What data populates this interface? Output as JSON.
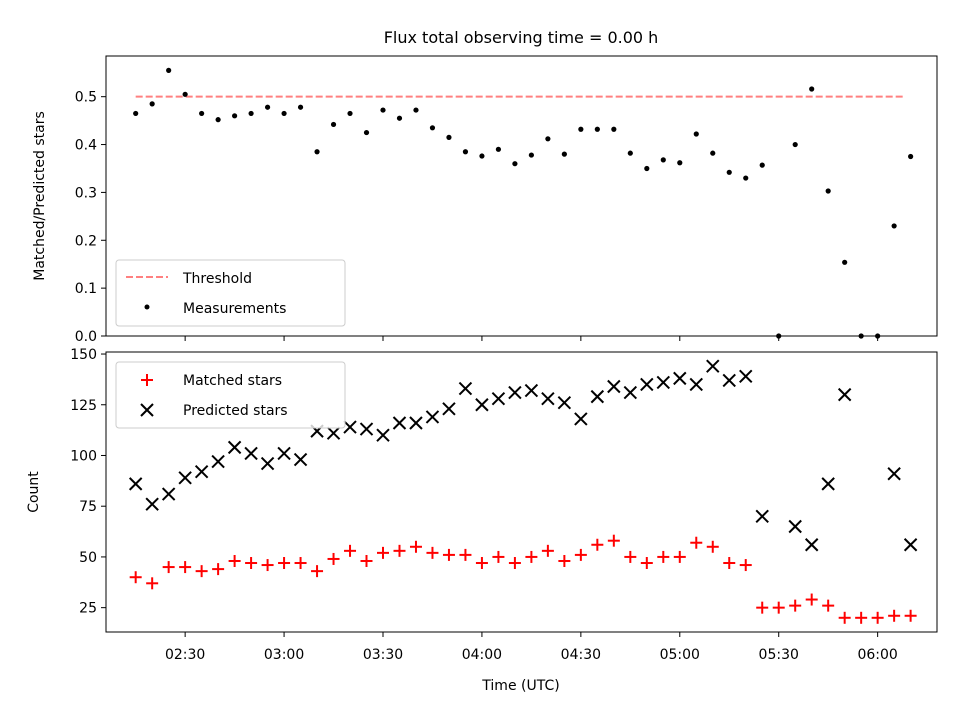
{
  "figure": {
    "title": "Flux total observing time = 0.00 h"
  },
  "chart_data": [
    {
      "type": "scatter",
      "panel": "top",
      "ylabel": "Matched/Predicted stars",
      "xlabel": "",
      "ylim": [
        0,
        0.585
      ],
      "yticks": [
        0.0,
        0.1,
        0.2,
        0.3,
        0.4,
        0.5
      ],
      "ytick_labels": [
        "0.0",
        "0.1",
        "0.2",
        "0.3",
        "0.4",
        "0.5"
      ],
      "xlim": [
        "02:06",
        "06:18"
      ],
      "legend_position": "lower-left",
      "series": [
        {
          "name": "Threshold",
          "style": "dashed-line",
          "color": "#ff8080",
          "x": [
            "02:15",
            "06:08"
          ],
          "y": [
            0.5,
            0.5
          ]
        },
        {
          "name": "Measurements",
          "style": "dot",
          "color": "#000000",
          "x": [
            "02:15",
            "02:20",
            "02:25",
            "02:30",
            "02:35",
            "02:40",
            "02:45",
            "02:50",
            "02:55",
            "03:00",
            "03:05",
            "03:10",
            "03:15",
            "03:20",
            "03:25",
            "03:30",
            "03:35",
            "03:40",
            "03:45",
            "03:50",
            "03:55",
            "04:00",
            "04:05",
            "04:10",
            "04:15",
            "04:20",
            "04:25",
            "04:30",
            "04:35",
            "04:40",
            "04:45",
            "04:50",
            "04:55",
            "05:00",
            "05:05",
            "05:10",
            "05:15",
            "05:20",
            "05:25",
            "05:30",
            "05:35",
            "05:40",
            "05:45",
            "05:50",
            "05:55",
            "06:00",
            "06:05",
            "06:10"
          ],
          "y": [
            0.465,
            0.485,
            0.555,
            0.505,
            0.465,
            0.452,
            0.46,
            0.465,
            0.478,
            0.465,
            0.478,
            0.385,
            0.442,
            0.465,
            0.425,
            0.472,
            0.455,
            0.472,
            0.435,
            0.415,
            0.385,
            0.376,
            0.39,
            0.36,
            0.378,
            0.412,
            0.38,
            0.432,
            0.432,
            0.432,
            0.382,
            0.35,
            0.368,
            0.362,
            0.422,
            0.382,
            0.342,
            0.33,
            0.357,
            0.0,
            0.4,
            0.516,
            0.303,
            0.154,
            0.0,
            0.0,
            0.23,
            0.375
          ]
        }
      ]
    },
    {
      "type": "scatter",
      "panel": "bottom",
      "ylabel": "Count",
      "xlabel": "Time (UTC)",
      "ylim": [
        13,
        151
      ],
      "yticks": [
        25,
        50,
        75,
        100,
        125,
        150
      ],
      "ytick_labels": [
        "25",
        "50",
        "75",
        "100",
        "125",
        "150"
      ],
      "xlim": [
        "02:06",
        "06:18"
      ],
      "xticks": [
        "02:30",
        "03:00",
        "03:30",
        "04:00",
        "04:30",
        "05:00",
        "05:30",
        "06:00"
      ],
      "xtick_labels": [
        "02:30",
        "03:00",
        "03:30",
        "04:00",
        "04:30",
        "05:00",
        "05:30",
        "06:00"
      ],
      "legend_position": "top-left",
      "series": [
        {
          "name": "Matched stars",
          "marker": "plus",
          "color": "#ff0000",
          "x": [
            "02:15",
            "02:20",
            "02:25",
            "02:30",
            "02:35",
            "02:40",
            "02:45",
            "02:50",
            "02:55",
            "03:00",
            "03:05",
            "03:10",
            "03:15",
            "03:20",
            "03:25",
            "03:30",
            "03:35",
            "03:40",
            "03:45",
            "03:50",
            "03:55",
            "04:00",
            "04:05",
            "04:10",
            "04:15",
            "04:20",
            "04:25",
            "04:30",
            "04:35",
            "04:40",
            "04:45",
            "04:50",
            "04:55",
            "05:00",
            "05:05",
            "05:10",
            "05:15",
            "05:20",
            "05:25",
            "05:30",
            "05:35",
            "05:40",
            "05:45",
            "05:50",
            "05:55",
            "06:00",
            "06:05",
            "06:10"
          ],
          "y": [
            40,
            37,
            45,
            45,
            43,
            44,
            48,
            47,
            46,
            47,
            47,
            43,
            49,
            53,
            48,
            52,
            53,
            55,
            52,
            51,
            51,
            47,
            50,
            47,
            50,
            53,
            48,
            51,
            56,
            58,
            50,
            47,
            50,
            50,
            57,
            55,
            47,
            46,
            25,
            25,
            26,
            29,
            26,
            20,
            20,
            20,
            21,
            21
          ]
        },
        {
          "name": "Predicted stars",
          "marker": "x",
          "color": "#000000",
          "x": [
            "02:15",
            "02:20",
            "02:25",
            "02:30",
            "02:35",
            "02:40",
            "02:45",
            "02:50",
            "02:55",
            "03:00",
            "03:05",
            "03:10",
            "03:15",
            "03:20",
            "03:25",
            "03:30",
            "03:35",
            "03:40",
            "03:45",
            "03:50",
            "03:55",
            "04:00",
            "04:05",
            "04:10",
            "04:15",
            "04:20",
            "04:25",
            "04:30",
            "04:35",
            "04:40",
            "04:45",
            "04:50",
            "04:55",
            "05:00",
            "05:05",
            "05:10",
            "05:15",
            "05:20",
            "05:25",
            "05:30",
            "05:35",
            "05:40",
            "05:45",
            "05:50",
            "05:55",
            "06:00",
            "06:05",
            "06:10"
          ],
          "y": [
            86,
            76,
            81,
            89,
            92,
            97,
            104,
            101,
            96,
            101,
            98,
            112,
            111,
            114,
            113,
            110,
            116,
            116,
            119,
            123,
            133,
            125,
            128,
            131,
            132,
            128,
            126,
            118,
            129,
            134,
            131,
            135,
            136,
            138,
            135,
            144,
            137,
            139,
            70,
            null,
            65,
            56,
            86,
            130,
            null,
            null,
            91,
            56
          ]
        }
      ]
    }
  ]
}
